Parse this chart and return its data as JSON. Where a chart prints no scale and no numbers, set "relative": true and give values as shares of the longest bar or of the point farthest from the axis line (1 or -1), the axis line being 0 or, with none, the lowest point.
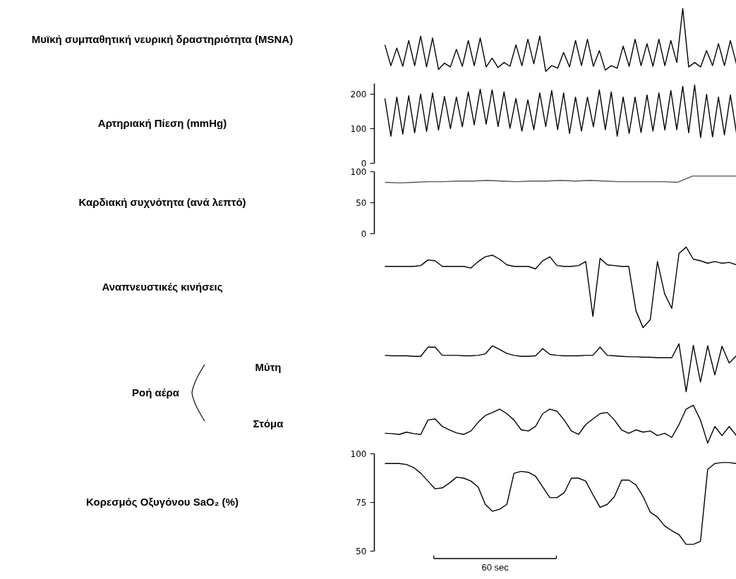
{
  "chart_data": [
    {
      "type": "line",
      "ylabel": "Μυϊκή συμπαθητική νευρική δραστηριότητα (MSNA)",
      "relative": true,
      "color": "#000000",
      "categories": [
        null,
        null,
        null,
        null,
        null,
        null,
        null,
        null,
        null,
        null,
        null,
        null,
        null,
        null,
        null,
        null,
        null,
        null,
        null,
        null,
        null,
        null,
        null,
        null,
        null,
        null,
        null,
        null,
        null,
        null,
        null,
        null,
        null,
        null,
        null,
        null,
        null,
        null,
        null,
        null,
        null,
        null,
        null,
        null,
        null,
        null,
        null,
        null,
        null,
        null,
        null,
        null,
        null,
        null,
        null,
        null,
        null,
        null,
        null,
        null
      ],
      "values": [
        0.42,
        0.09,
        0.37,
        0.08,
        0.49,
        0.09,
        0.56,
        0.07,
        0.53,
        0.03,
        0.13,
        0.07,
        0.35,
        0.08,
        0.49,
        0.09,
        0.53,
        0.07,
        0.21,
        0.06,
        0.14,
        0.08,
        0.42,
        0.09,
        0.51,
        0.12,
        0.56,
        0.0,
        0.09,
        0.05,
        0.3,
        0.07,
        0.49,
        0.09,
        0.51,
        0.08,
        0.33,
        0.02,
        0.09,
        0.05,
        0.4,
        0.08,
        0.51,
        0.09,
        0.44,
        0.08,
        0.51,
        0.09,
        0.49,
        0.14,
        1.0,
        0.07,
        0.14,
        0.07,
        0.33,
        0.09,
        0.44,
        0.09,
        0.49,
        0.12
      ]
    },
    {
      "type": "line",
      "ylabel": "Αρτηριακή Πίεση (mmHg)",
      "color": "#000000",
      "ylim": [
        0,
        230
      ],
      "yticks": [
        0,
        100,
        200
      ],
      "categories": [
        null,
        null,
        null,
        null,
        null,
        null,
        null,
        null,
        null,
        null,
        null,
        null,
        null,
        null,
        null,
        null,
        null,
        null,
        null,
        null,
        null,
        null,
        null,
        null,
        null,
        null,
        null,
        null,
        null,
        null,
        null,
        null,
        null,
        null,
        null,
        null,
        null,
        null,
        null,
        null,
        null,
        null,
        null,
        null,
        null,
        null,
        null,
        null,
        null,
        null,
        null,
        null,
        null,
        null,
        null,
        null,
        null,
        null,
        null,
        null
      ],
      "values": [
        187,
        78,
        191,
        84,
        195,
        88,
        200,
        92,
        203,
        96,
        193,
        100,
        191,
        105,
        206,
        111,
        214,
        113,
        212,
        106,
        206,
        101,
        187,
        93,
        183,
        97,
        203,
        106,
        210,
        97,
        203,
        86,
        191,
        93,
        191,
        105,
        212,
        97,
        206,
        78,
        191,
        86,
        191,
        89,
        197,
        93,
        203,
        96,
        210,
        97,
        222,
        88,
        226,
        74,
        199,
        76,
        191,
        82,
        197,
        89
      ]
    },
    {
      "type": "line",
      "ylabel": "Καρδιακή συχνότητα (ανά λεπτό)",
      "color": "#555555",
      "ylim": [
        0,
        100
      ],
      "yticks": [
        0,
        50,
        100
      ],
      "categories": [
        null,
        null,
        null,
        null,
        null,
        null,
        null,
        null,
        null,
        null,
        null,
        null,
        null,
        null,
        null,
        null,
        null,
        null,
        null,
        null,
        null,
        null,
        null,
        null,
        null
      ],
      "values": [
        83,
        82,
        83,
        84,
        84,
        85,
        85,
        86,
        85,
        84,
        85,
        85,
        86,
        85,
        86,
        85,
        84,
        84,
        84,
        84,
        83,
        93,
        93,
        93,
        93
      ]
    },
    {
      "type": "line",
      "ylabel": "Αναπνευστικές κινήσεις",
      "relative": true,
      "color": "#000000",
      "categories": [
        null,
        null,
        null,
        null,
        null,
        null,
        null,
        null,
        null,
        null,
        null,
        null,
        null,
        null,
        null,
        null,
        null,
        null,
        null,
        null,
        null,
        null,
        null,
        null,
        null,
        null,
        null,
        null,
        null,
        null,
        null,
        null,
        null,
        null,
        null,
        null,
        null,
        null,
        null,
        null,
        null,
        null,
        null,
        null,
        null,
        null,
        null,
        null,
        null,
        null
      ],
      "values": [
        0.76,
        0.76,
        0.76,
        0.76,
        0.76,
        0.77,
        0.84,
        0.83,
        0.76,
        0.76,
        0.76,
        0.76,
        0.74,
        0.82,
        0.88,
        0.9,
        0.85,
        0.78,
        0.76,
        0.76,
        0.76,
        0.73,
        0.83,
        0.88,
        0.77,
        0.76,
        0.76,
        0.77,
        0.82,
        0.14,
        0.86,
        0.78,
        0.77,
        0.76,
        0.76,
        0.21,
        0.0,
        0.1,
        0.82,
        0.42,
        0.24,
        0.92,
        1.0,
        0.85,
        0.83,
        0.8,
        0.82,
        0.8,
        0.81,
        0.78
      ]
    },
    {
      "type": "line",
      "ylabel": "Μύτη",
      "relative": true,
      "color": "#000000",
      "annotations": [
        "Ροή αέρα"
      ],
      "categories": [
        null,
        null,
        null,
        null,
        null,
        null,
        null,
        null,
        null,
        null,
        null,
        null,
        null,
        null,
        null,
        null,
        null,
        null,
        null,
        null,
        null,
        null,
        null,
        null,
        null,
        null,
        null,
        null,
        null,
        null,
        null,
        null,
        null,
        null,
        null,
        null,
        null,
        null,
        null,
        null,
        null,
        null,
        null,
        null,
        null,
        null,
        null,
        null,
        null,
        null
      ],
      "values": [
        0.76,
        0.75,
        0.75,
        0.75,
        0.74,
        0.74,
        0.93,
        0.93,
        0.76,
        0.76,
        0.76,
        0.75,
        0.75,
        0.76,
        0.79,
        0.96,
        0.88,
        0.8,
        0.76,
        0.74,
        0.74,
        0.75,
        0.9,
        0.78,
        0.76,
        0.75,
        0.75,
        0.75,
        0.76,
        0.76,
        0.93,
        0.76,
        0.75,
        0.74,
        0.73,
        0.73,
        0.72,
        0.72,
        0.71,
        0.71,
        0.71,
        1.0,
        0.0,
        0.97,
        0.2,
        0.96,
        0.35,
        0.95,
        0.6,
        0.75
      ]
    },
    {
      "type": "line",
      "ylabel": "Στόμα",
      "relative": true,
      "color": "#000000",
      "categories": [
        null,
        null,
        null,
        null,
        null,
        null,
        null,
        null,
        null,
        null,
        null,
        null,
        null,
        null,
        null,
        null,
        null,
        null,
        null,
        null,
        null,
        null,
        null,
        null,
        null,
        null,
        null,
        null,
        null,
        null,
        null,
        null,
        null,
        null,
        null,
        null,
        null,
        null,
        null,
        null,
        null,
        null,
        null,
        null,
        null,
        null,
        null,
        null,
        null,
        null
      ],
      "values": [
        0.26,
        0.25,
        0.23,
        0.29,
        0.25,
        0.23,
        0.61,
        0.64,
        0.44,
        0.35,
        0.27,
        0.23,
        0.32,
        0.55,
        0.73,
        0.81,
        0.9,
        0.78,
        0.61,
        0.35,
        0.32,
        0.44,
        0.78,
        0.9,
        0.84,
        0.61,
        0.32,
        0.23,
        0.49,
        0.64,
        0.78,
        0.81,
        0.61,
        0.35,
        0.26,
        0.35,
        0.29,
        0.32,
        0.2,
        0.26,
        0.15,
        0.49,
        0.9,
        1.0,
        0.61,
        0.0,
        0.44,
        0.2,
        0.44,
        0.2
      ]
    },
    {
      "type": "line",
      "ylabel": "Κορεσμός Οξυγόνου SaO₂ (%)",
      "color": "#000000",
      "ylim": [
        50,
        100
      ],
      "yticks": [
        50,
        75,
        100
      ],
      "annotations": [
        "60 sec"
      ],
      "categories": [
        null,
        null,
        null,
        null,
        null,
        null,
        null,
        null,
        null,
        null,
        null,
        null,
        null,
        null,
        null,
        null,
        null,
        null,
        null,
        null,
        null,
        null,
        null,
        null,
        null,
        null,
        null,
        null,
        null,
        null,
        null,
        null,
        null,
        null,
        null,
        null,
        null,
        null,
        null,
        null,
        null,
        null,
        null,
        null,
        null,
        null,
        null,
        null,
        null,
        null
      ],
      "values": [
        95,
        95,
        95,
        94.5,
        93,
        90,
        86,
        82,
        82.5,
        85,
        88,
        87.5,
        86,
        83,
        74,
        70.5,
        71.5,
        74,
        90,
        91,
        90.5,
        88.5,
        83,
        77.5,
        77.5,
        80,
        87.5,
        87.5,
        86,
        79,
        72.5,
        74,
        78,
        86.5,
        86.5,
        84,
        78,
        70,
        67.5,
        63,
        60.5,
        58.5,
        53.5,
        53.5,
        55,
        92,
        95,
        95.5,
        95.5,
        95
      ]
    }
  ]
}
